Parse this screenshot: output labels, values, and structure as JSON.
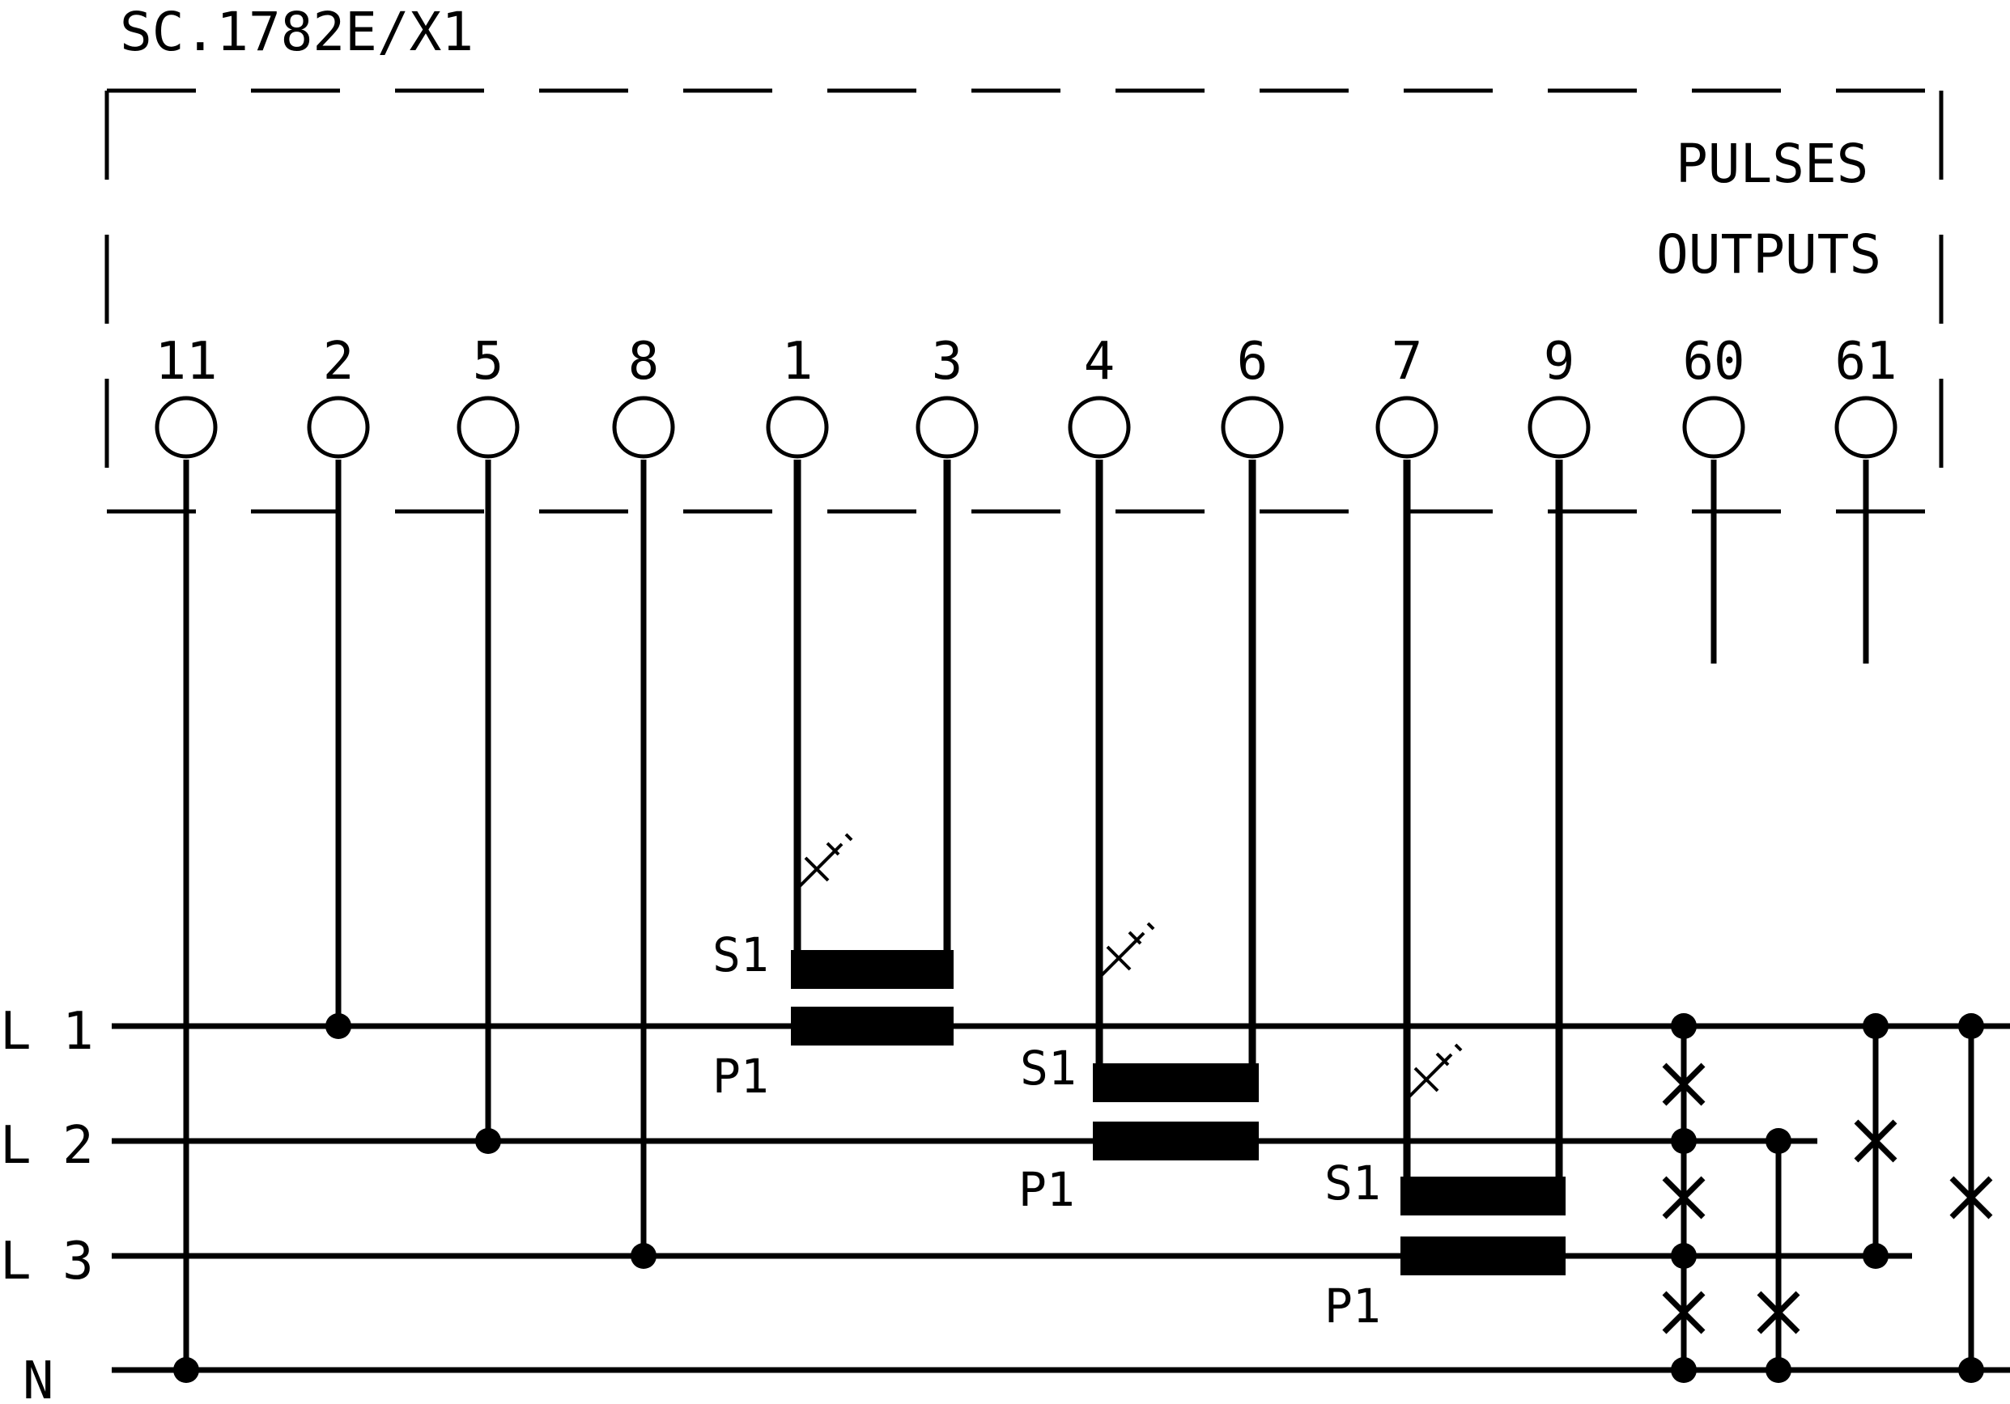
{
  "device_title": "SC.1782E/X1",
  "pulses_outputs": {
    "line1": "PULSES",
    "line2": "OUTPUTS"
  },
  "terminals": [
    "11",
    "2",
    "5",
    "8",
    "1",
    "3",
    "4",
    "6",
    "7",
    "9",
    "60",
    "61"
  ],
  "lines": {
    "l1": "L 1",
    "l2": "L 2",
    "l3": "L 3",
    "n": "N"
  },
  "current_transformers": [
    {
      "secondary_label": "S1",
      "primary_label": "P1"
    },
    {
      "secondary_label": "S1",
      "primary_label": "P1"
    },
    {
      "secondary_label": "S1",
      "primary_label": "P1"
    }
  ],
  "colors": {
    "ink": "#000000",
    "background": "#ffffff"
  },
  "icons": [
    "terminal-circle-icon",
    "junction-dot-icon",
    "crossover-x-icon",
    "ground-symbol-icon"
  ]
}
